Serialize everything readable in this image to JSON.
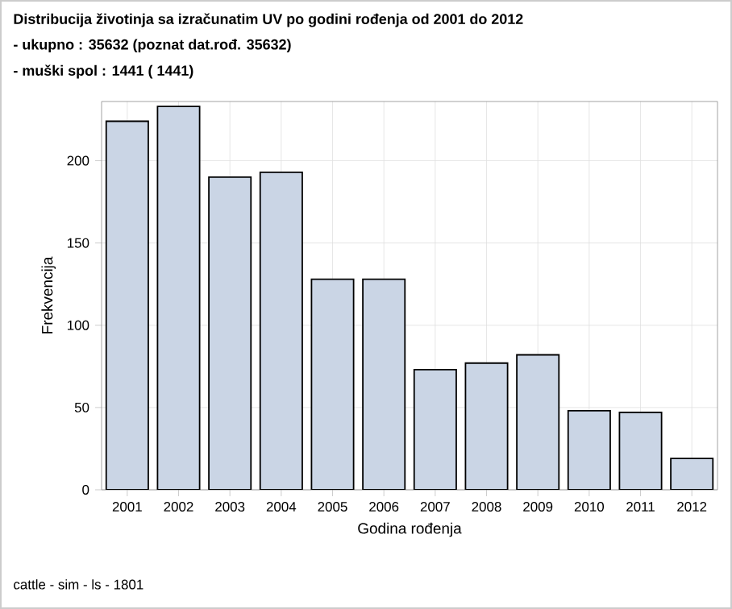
{
  "chart_data": {
    "type": "bar",
    "title": "Distribucija životinja sa izračunatim UV po godini rođenja od 2001 do 2012",
    "subtitle": "- ukupno : 35632 (poznat dat.rođ. 35632)",
    "annotations": [
      "- muški spol : 1441 ( 1441)",
      "cattle - sim - ls - 1801"
    ],
    "xlabel": "Godina rođenja",
    "ylabel": "Frekvencija",
    "categories": [
      "2001",
      "2002",
      "2003",
      "2004",
      "2005",
      "2006",
      "2007",
      "2008",
      "2009",
      "2010",
      "2011",
      "2012"
    ],
    "values": [
      224,
      233,
      190,
      193,
      128,
      128,
      73,
      77,
      82,
      48,
      47,
      19
    ],
    "color": "#cad5e5",
    "ylim": [
      0,
      236
    ],
    "yticks": [
      0,
      50,
      100,
      150,
      200
    ],
    "grid": true
  }
}
